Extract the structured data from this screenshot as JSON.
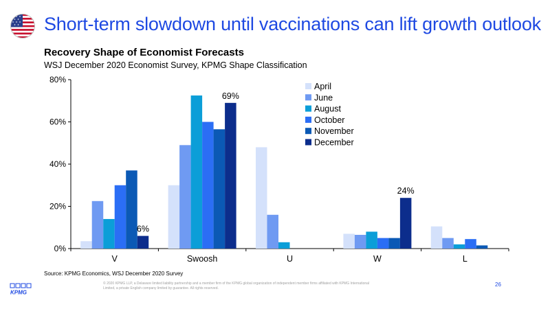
{
  "slide": {
    "title": "Short-term slowdown until vaccinations can lift growth outlook",
    "source": "Source:  KPMG Economics,  WSJ December  2020  Survey",
    "legal": "© 2020 KPMG LLP, a Delaware limited liability partnership and a member firm of the KPMG global organization of independent member firms affiliated with KPMG International Limited, a private English company limited by guarantee. All rights reserved.",
    "page_number": "26",
    "logo_text": "KPMG"
  },
  "chart_data": {
    "type": "bar",
    "title": "Recovery Shape of Economist Forecasts",
    "subtitle": "WSJ December 2020 Economist Survey, KPMG Shape Classification",
    "categories": [
      "V",
      "Swoosh",
      "U",
      "W",
      "L"
    ],
    "series": [
      {
        "name": "April",
        "color": "#d4e1fb",
        "values": [
          3.5,
          30,
          48,
          7,
          10.5
        ]
      },
      {
        "name": "June",
        "color": "#6f9af2",
        "values": [
          22.5,
          49,
          16,
          6.5,
          5
        ]
      },
      {
        "name": "August",
        "color": "#0b9ed8",
        "values": [
          14,
          72.5,
          3,
          8,
          2
        ]
      },
      {
        "name": "October",
        "color": "#2b6ef5",
        "values": [
          30,
          60,
          0,
          5,
          4.5
        ]
      },
      {
        "name": "November",
        "color": "#0b59b5",
        "values": [
          37,
          56.5,
          0,
          5,
          1.5
        ]
      },
      {
        "name": "December",
        "color": "#0c2d8c",
        "values": [
          6,
          69,
          0,
          24,
          0
        ]
      }
    ],
    "data_labels": [
      {
        "category": "V",
        "series": "December",
        "text": "6%"
      },
      {
        "category": "Swoosh",
        "series": "December",
        "text": "69%"
      },
      {
        "category": "W",
        "series": "December",
        "text": "24%"
      }
    ],
    "y_ticks": [
      "0%",
      "20%",
      "40%",
      "60%",
      "80%"
    ],
    "ylim": [
      0,
      80
    ],
    "legend_position": "top-center"
  }
}
